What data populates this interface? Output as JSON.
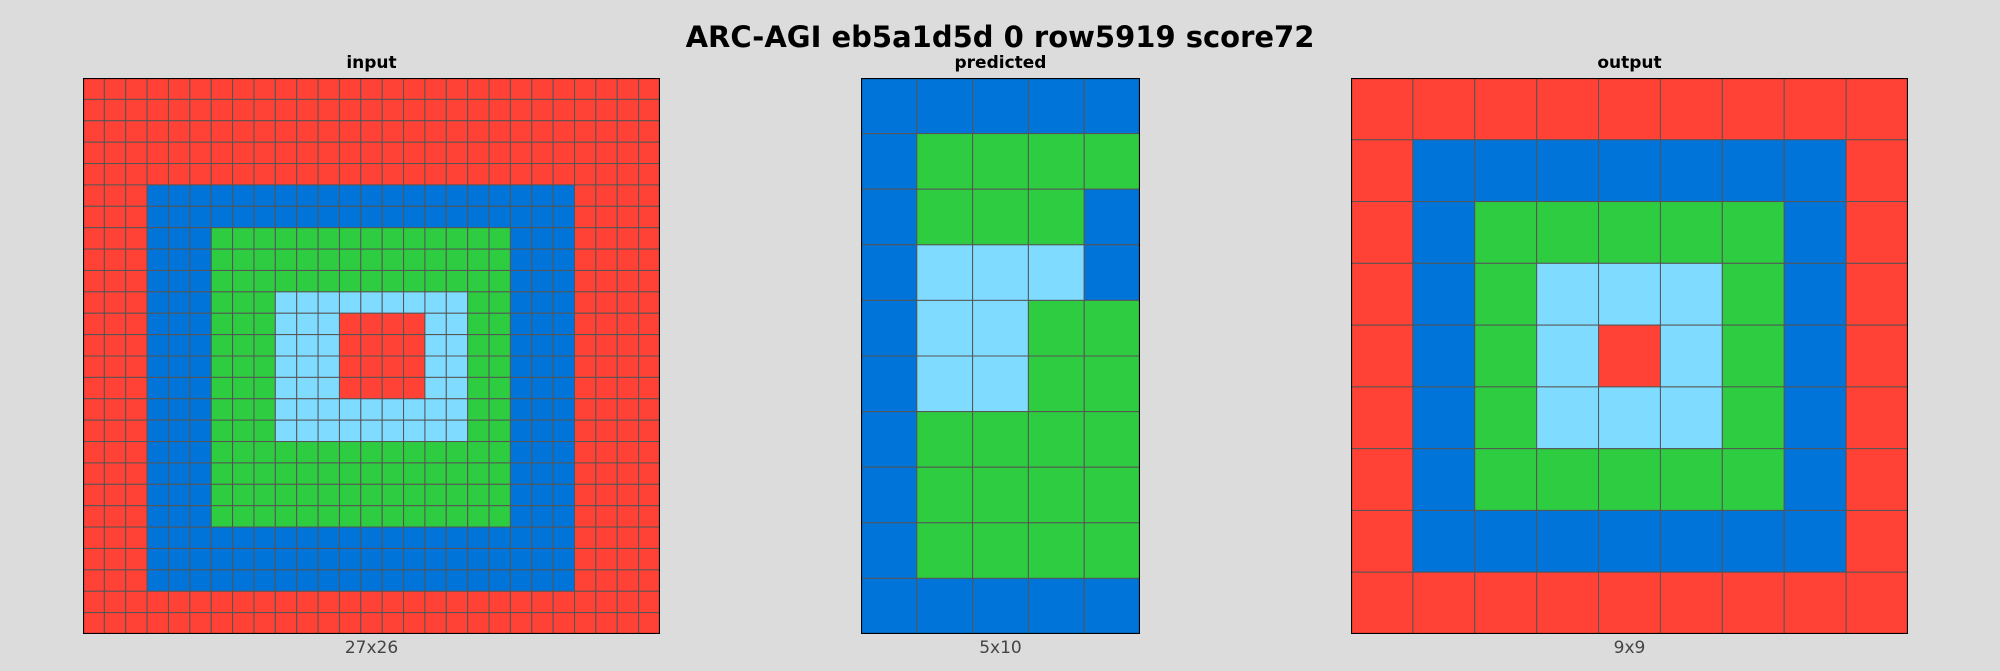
{
  "title": "ARC-AGI eb5a1d5d 0 row5919 score72",
  "palette": {
    "red": "#ff4136",
    "blue": "#0074d9",
    "green": "#2ecc40",
    "lightblue": "#7fdbff",
    "gridline": "#555555",
    "border": "#000000"
  },
  "panels": [
    {
      "title": "input",
      "size_label": "27x26",
      "cols": 27,
      "rows": 26,
      "rects": [
        {
          "color": "red",
          "c0": 0,
          "r0": 0,
          "c1": 26,
          "r1": 25
        },
        {
          "color": "blue",
          "c0": 3,
          "r0": 5,
          "c1": 22,
          "r1": 23
        },
        {
          "color": "green",
          "c0": 6,
          "r0": 7,
          "c1": 19,
          "r1": 20
        },
        {
          "color": "lightblue",
          "c0": 9,
          "r0": 10,
          "c1": 17,
          "r1": 16
        },
        {
          "color": "red",
          "c0": 12,
          "r0": 11,
          "c1": 15,
          "r1": 14
        }
      ]
    },
    {
      "title": "predicted",
      "size_label": "5x10",
      "cols": 5,
      "rows": 10,
      "cells": [
        [
          "blue",
          "blue",
          "blue",
          "blue",
          "blue"
        ],
        [
          "blue",
          "green",
          "green",
          "green",
          "green"
        ],
        [
          "blue",
          "green",
          "green",
          "green",
          "blue"
        ],
        [
          "blue",
          "lightblue",
          "lightblue",
          "lightblue",
          "blue"
        ],
        [
          "blue",
          "lightblue",
          "lightblue",
          "green",
          "green"
        ],
        [
          "blue",
          "lightblue",
          "lightblue",
          "green",
          "green"
        ],
        [
          "blue",
          "green",
          "green",
          "green",
          "green"
        ],
        [
          "blue",
          "green",
          "green",
          "green",
          "green"
        ],
        [
          "blue",
          "green",
          "green",
          "green",
          "green"
        ],
        [
          "blue",
          "blue",
          "blue",
          "blue",
          "blue"
        ]
      ]
    },
    {
      "title": "output",
      "size_label": "9x9",
      "cols": 9,
      "rows": 9,
      "cells": [
        [
          "red",
          "red",
          "red",
          "red",
          "red",
          "red",
          "red",
          "red",
          "red"
        ],
        [
          "red",
          "blue",
          "blue",
          "blue",
          "blue",
          "blue",
          "blue",
          "blue",
          "red"
        ],
        [
          "red",
          "blue",
          "green",
          "green",
          "green",
          "green",
          "green",
          "blue",
          "red"
        ],
        [
          "red",
          "blue",
          "green",
          "lightblue",
          "lightblue",
          "lightblue",
          "green",
          "blue",
          "red"
        ],
        [
          "red",
          "blue",
          "green",
          "lightblue",
          "red",
          "lightblue",
          "green",
          "blue",
          "red"
        ],
        [
          "red",
          "blue",
          "green",
          "lightblue",
          "lightblue",
          "lightblue",
          "green",
          "blue",
          "red"
        ],
        [
          "red",
          "blue",
          "green",
          "green",
          "green",
          "green",
          "green",
          "blue",
          "red"
        ],
        [
          "red",
          "blue",
          "blue",
          "blue",
          "blue",
          "blue",
          "blue",
          "blue",
          "red"
        ],
        [
          "red",
          "red",
          "red",
          "red",
          "red",
          "red",
          "red",
          "red",
          "red"
        ]
      ]
    }
  ]
}
